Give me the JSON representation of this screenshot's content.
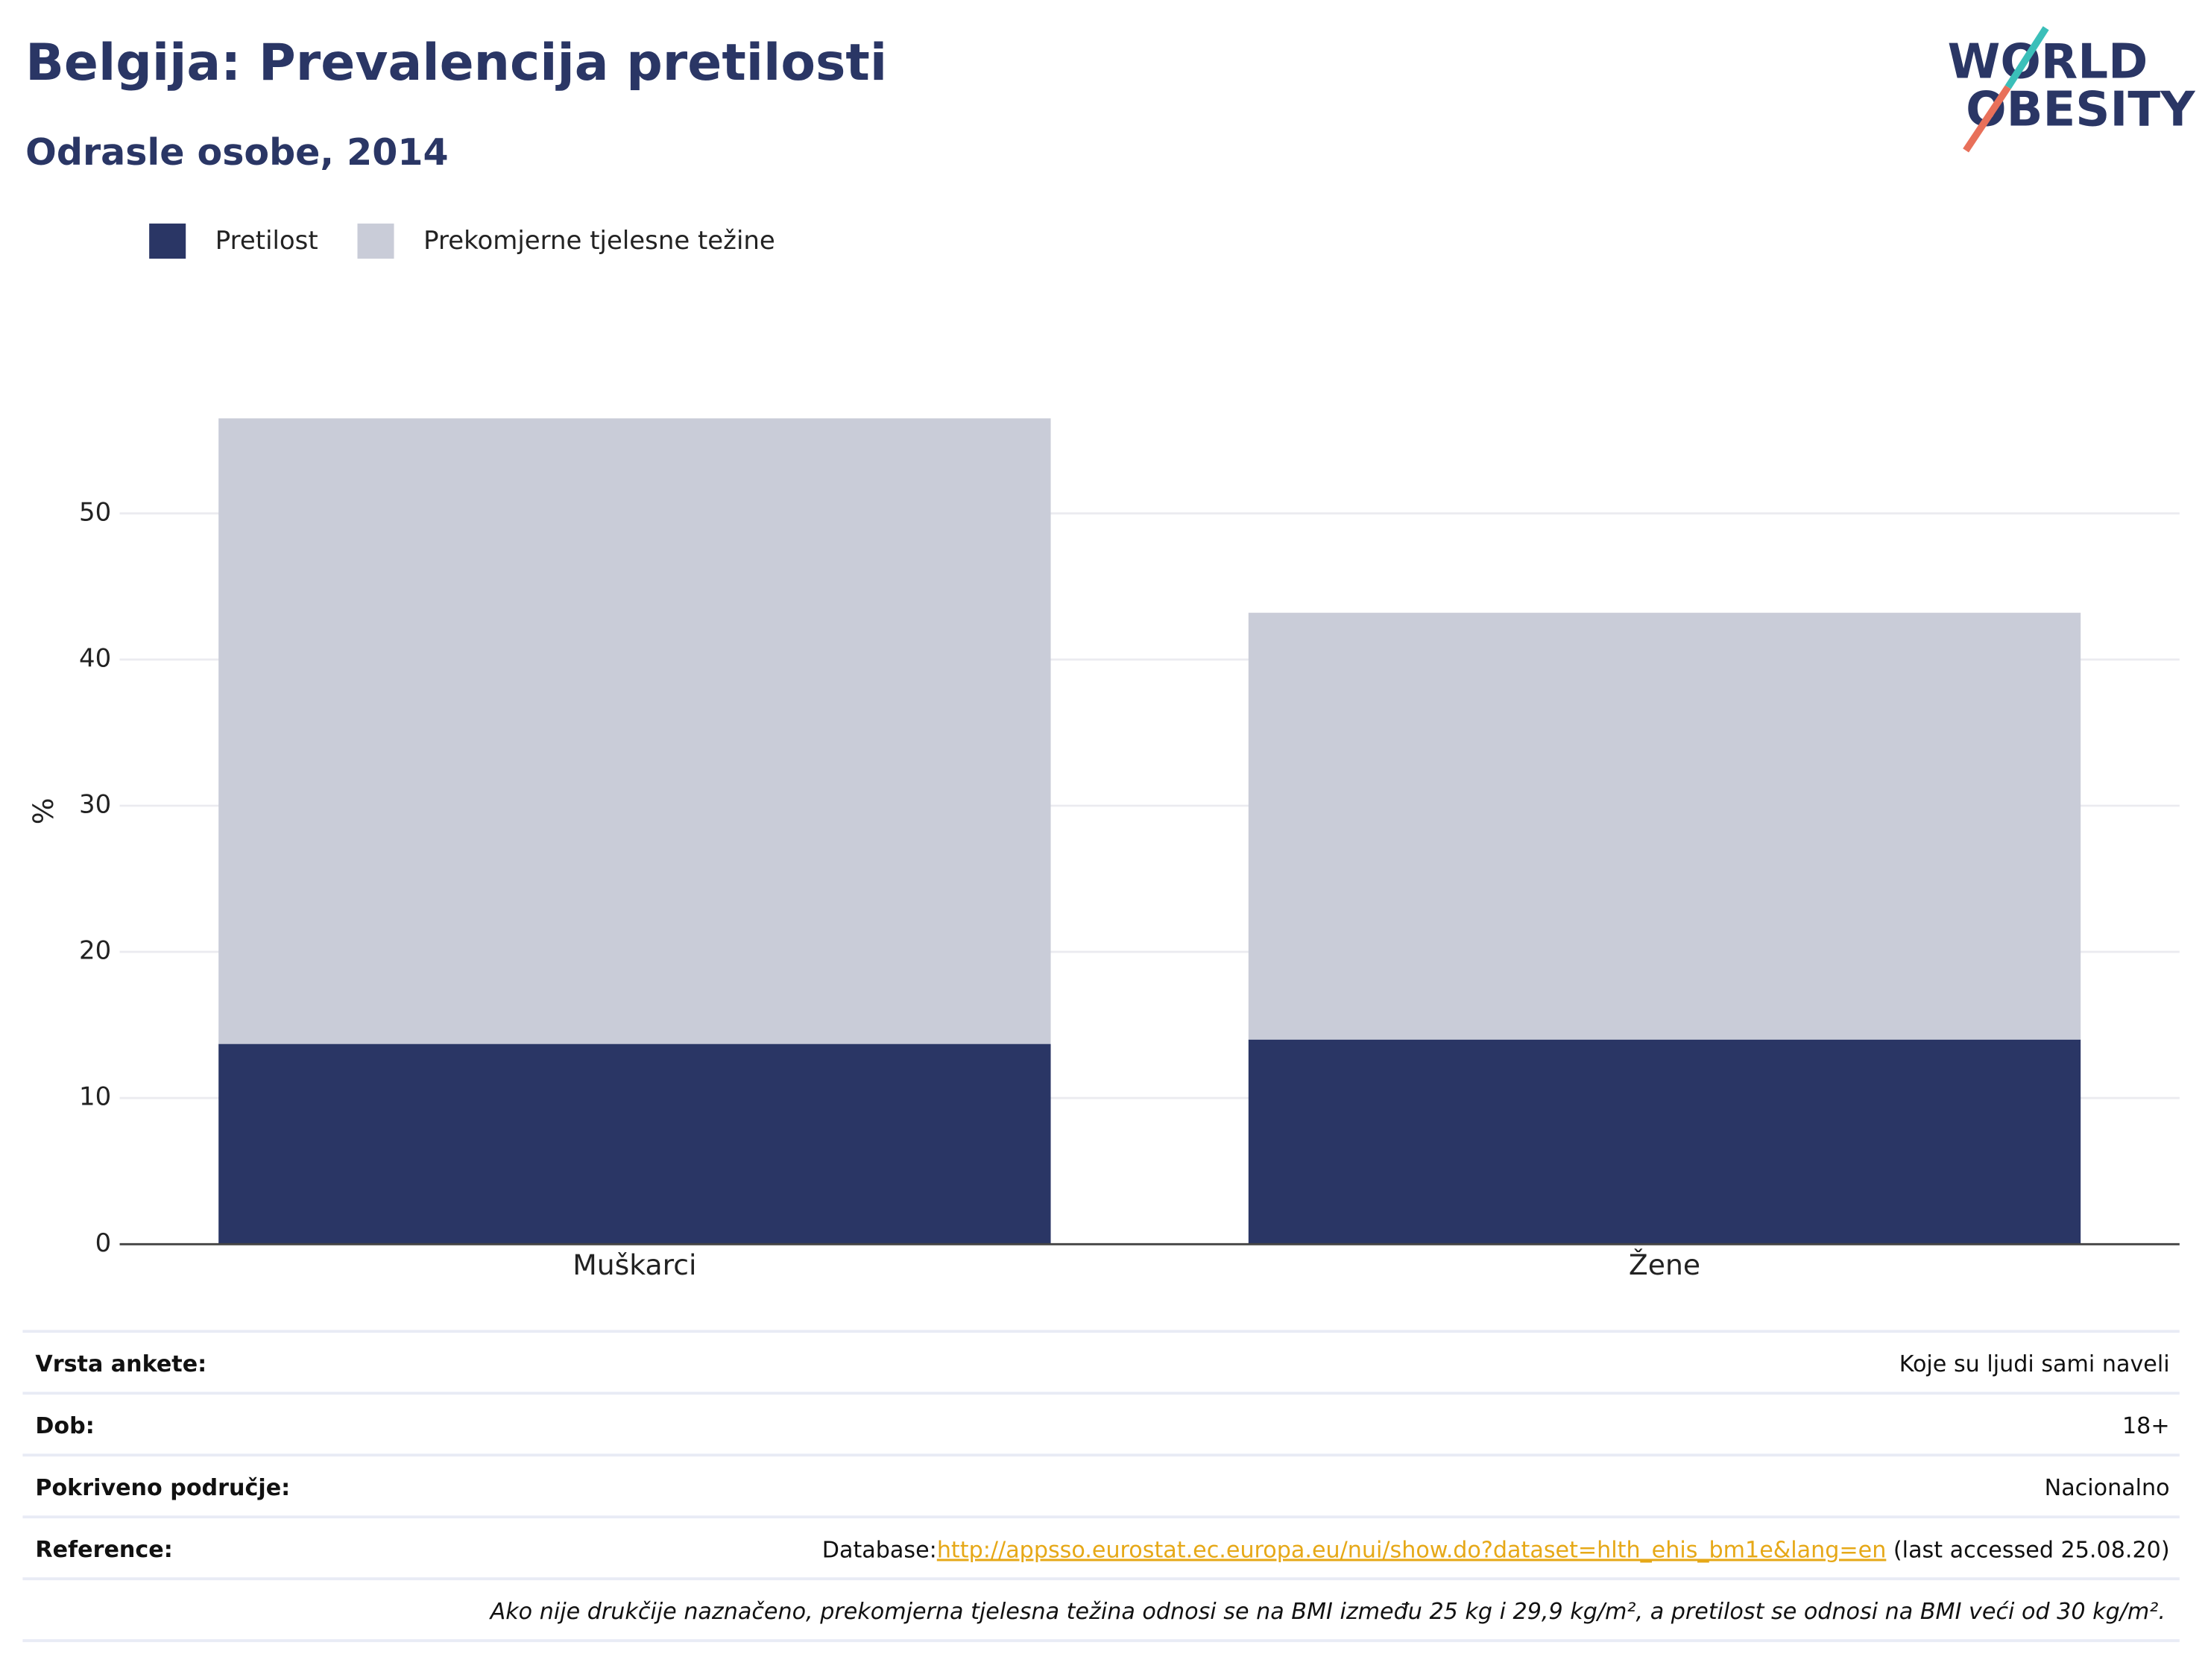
{
  "chart_data": {
    "type": "bar",
    "stacked": true,
    "title": "Belgija: Prevalencija pretilosti",
    "subtitle": "Odrasle osobe, 2014",
    "y_label": "%",
    "categories": [
      "Muškarci",
      "Žene"
    ],
    "series": [
      {
        "name": "Pretilost",
        "color": "#2a3665",
        "values": [
          13.7,
          14.0
        ]
      },
      {
        "name": "Prekomjerne tjelesne težine",
        "color": "#c9ccd8",
        "values": [
          42.8,
          29.2
        ]
      }
    ],
    "ylim": [
      0,
      58
    ],
    "yticks": [
      0,
      10,
      20,
      30,
      40,
      50
    ],
    "grid": true
  },
  "logo": {
    "line1": "WORLD",
    "line2": "OBESITY"
  },
  "info_table": {
    "rows": [
      {
        "label": "Vrsta ankete:",
        "value": "Koje su ljudi sami naveli"
      },
      {
        "label": "Dob:",
        "value": "18+"
      },
      {
        "label": "Pokriveno područje:",
        "value": "Nacionalno"
      }
    ],
    "reference": {
      "label": "Reference:",
      "prefix": "Database:",
      "link": "http://appsso.eurostat.ec.europa.eu/nui/show.do?dataset=hlth_ehis_bm1e&lang=en",
      "suffix": " (last accessed 25.08.20)"
    },
    "footnote": "Ako nije drukčije naznačeno, prekomjerna tjelesna težina odnosi se na BMI između 25 kg i 29,9 kg/m², a pretilost se odnosi na BMI veći od 30 kg/m²."
  }
}
